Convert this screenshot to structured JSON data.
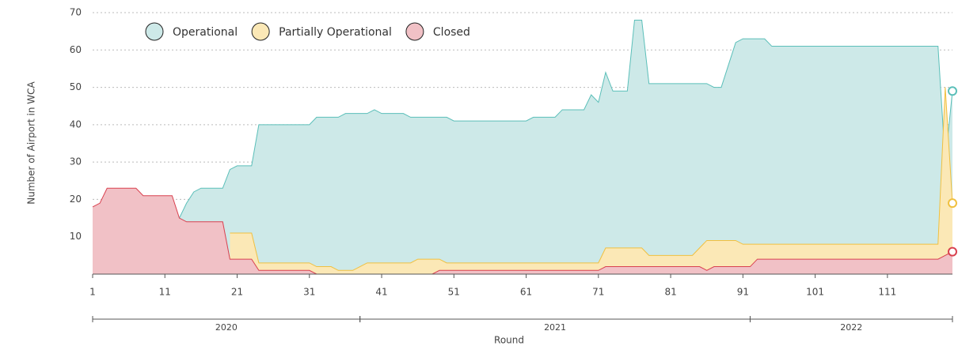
{
  "chart_data": {
    "type": "area",
    "x_label": "Round",
    "y_label": "Number of Airport in WCA",
    "x": [
      1,
      2,
      3,
      4,
      5,
      6,
      7,
      8,
      9,
      10,
      11,
      12,
      13,
      14,
      15,
      16,
      17,
      18,
      19,
      20,
      21,
      22,
      23,
      24,
      25,
      26,
      27,
      28,
      29,
      30,
      31,
      32,
      33,
      34,
      35,
      36,
      37,
      38,
      39,
      40,
      41,
      42,
      43,
      44,
      45,
      46,
      47,
      48,
      49,
      50,
      51,
      52,
      53,
      54,
      55,
      56,
      57,
      58,
      59,
      60,
      61,
      62,
      63,
      64,
      65,
      66,
      67,
      68,
      69,
      70,
      71,
      72,
      73,
      74,
      75,
      76,
      77,
      78,
      79,
      80,
      81,
      82,
      83,
      84,
      85,
      86,
      87,
      88,
      89,
      90,
      91,
      92,
      93,
      94,
      95,
      96,
      97,
      98,
      99,
      100,
      101,
      102,
      103,
      104,
      105,
      106,
      107,
      108,
      109,
      110,
      111,
      112,
      113,
      114,
      115,
      116,
      117,
      118,
      119,
      120
    ],
    "series": [
      {
        "name": "Operational",
        "color": "#5bbfb9",
        "fill": "#cde9e8",
        "values": [
          null,
          null,
          null,
          null,
          null,
          null,
          null,
          null,
          null,
          null,
          null,
          null,
          15,
          19,
          22,
          23,
          23,
          23,
          23,
          28,
          29,
          29,
          29,
          40,
          40,
          40,
          40,
          40,
          40,
          40,
          40,
          42,
          42,
          42,
          42,
          43,
          43,
          43,
          43,
          44,
          43,
          43,
          43,
          43,
          42,
          42,
          42,
          42,
          42,
          42,
          41,
          41,
          41,
          41,
          41,
          41,
          41,
          41,
          41,
          41,
          41,
          42,
          42,
          42,
          42,
          44,
          44,
          44,
          44,
          48,
          46,
          54,
          49,
          49,
          49,
          68,
          68,
          51,
          51,
          51,
          51,
          51,
          51,
          51,
          51,
          51,
          50,
          50,
          56,
          62,
          63,
          63,
          63,
          63,
          61,
          61,
          61,
          61,
          61,
          61,
          61,
          61,
          61,
          61,
          61,
          61,
          61,
          61,
          61,
          61,
          61,
          61,
          61,
          61,
          61,
          61,
          61,
          61,
          30,
          49
        ]
      },
      {
        "name": "Partially Operational",
        "color": "#f0c040",
        "fill": "#fbe8b6",
        "values": [
          null,
          null,
          null,
          null,
          null,
          null,
          null,
          null,
          null,
          null,
          null,
          null,
          null,
          null,
          null,
          null,
          null,
          null,
          null,
          11,
          11,
          11,
          11,
          3,
          3,
          3,
          3,
          3,
          3,
          3,
          3,
          2,
          2,
          2,
          1,
          1,
          1,
          2,
          3,
          3,
          3,
          3,
          3,
          3,
          3,
          4,
          4,
          4,
          4,
          3,
          3,
          3,
          3,
          3,
          3,
          3,
          3,
          3,
          3,
          3,
          3,
          3,
          3,
          3,
          3,
          3,
          3,
          3,
          3,
          3,
          3,
          7,
          7,
          7,
          7,
          7,
          7,
          5,
          5,
          5,
          5,
          5,
          5,
          5,
          7,
          9,
          9,
          9,
          9,
          9,
          8,
          8,
          8,
          8,
          8,
          8,
          8,
          8,
          8,
          8,
          8,
          8,
          8,
          8,
          8,
          8,
          8,
          8,
          8,
          8,
          8,
          8,
          8,
          8,
          8,
          8,
          8,
          8,
          50,
          19
        ]
      },
      {
        "name": "Closed",
        "color": "#d9414f",
        "fill": "#f1c1c6",
        "values": [
          18,
          19,
          23,
          23,
          23,
          23,
          23,
          21,
          21,
          21,
          21,
          21,
          15,
          14,
          14,
          14,
          14,
          14,
          14,
          4,
          4,
          4,
          4,
          1,
          1,
          1,
          1,
          1,
          1,
          1,
          1,
          0,
          0,
          0,
          0,
          0,
          0,
          0,
          0,
          0,
          0,
          0,
          0,
          0,
          0,
          0,
          0,
          0,
          1,
          1,
          1,
          1,
          1,
          1,
          1,
          1,
          1,
          1,
          1,
          1,
          1,
          1,
          1,
          1,
          1,
          1,
          1,
          1,
          1,
          1,
          1,
          2,
          2,
          2,
          2,
          2,
          2,
          2,
          2,
          2,
          2,
          2,
          2,
          2,
          2,
          1,
          2,
          2,
          2,
          2,
          2,
          2,
          4,
          4,
          4,
          4,
          4,
          4,
          4,
          4,
          4,
          4,
          4,
          4,
          4,
          4,
          4,
          4,
          4,
          4,
          4,
          4,
          4,
          4,
          4,
          4,
          4,
          4,
          5,
          6
        ]
      }
    ],
    "xlim": [
      1,
      120
    ],
    "xticks": [
      1,
      11,
      21,
      31,
      41,
      51,
      61,
      71,
      81,
      91,
      101,
      111
    ],
    "ylim": [
      0,
      70
    ],
    "yticks": [
      10,
      20,
      30,
      40,
      50,
      60,
      70
    ],
    "grid": true,
    "periods": [
      {
        "label": "2020",
        "start": 1,
        "end": 38
      },
      {
        "label": "2021",
        "start": 38,
        "end": 92
      },
      {
        "label": "2022",
        "start": 92,
        "end": 120
      }
    ]
  }
}
